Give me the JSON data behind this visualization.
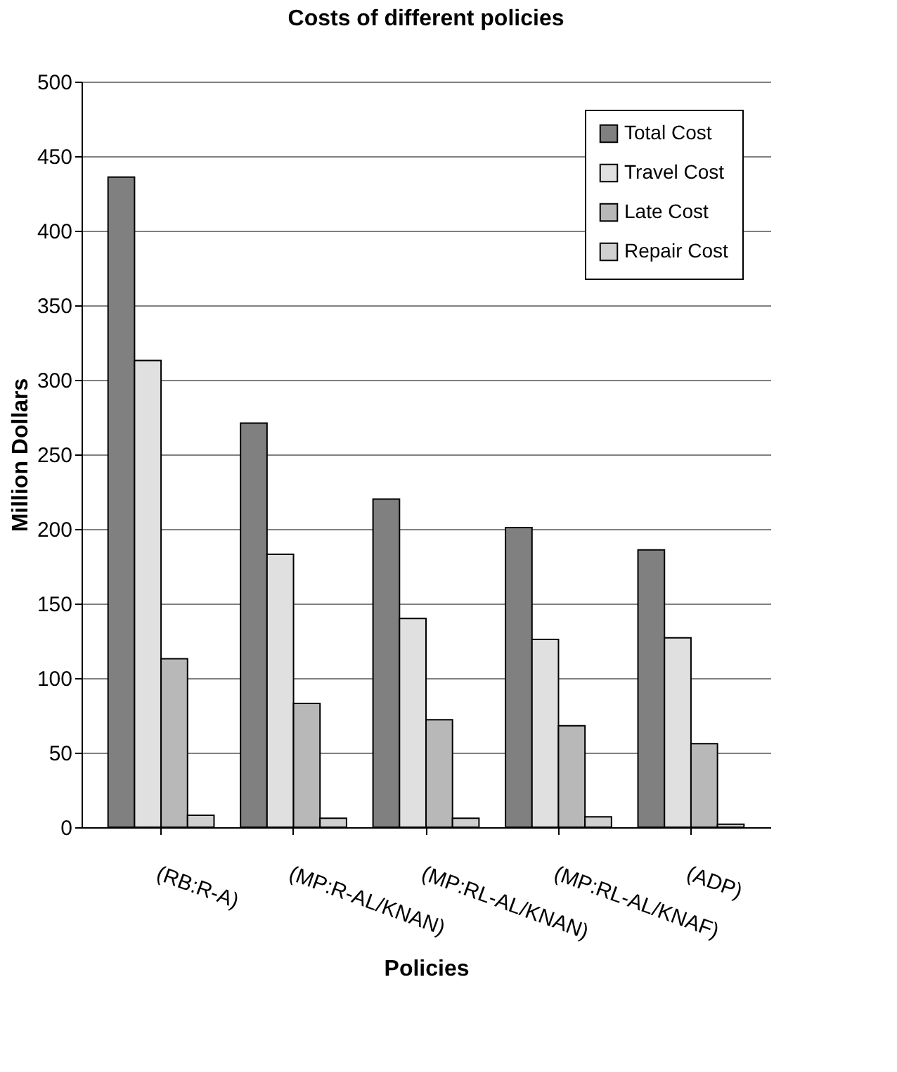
{
  "chart_data": {
    "type": "bar",
    "title": "Costs of different policies",
    "xlabel": "Policies",
    "ylabel": "Million Dollars",
    "categories": [
      "(RB:R-A)",
      "(MP:R-AL/KNAN)",
      "(MP:RL-AL/KNAN)",
      "(MP:RL-AL/KNAF)",
      "(ADP)"
    ],
    "series": [
      {
        "name": "Total Cost",
        "color": "#808080",
        "values": [
          436,
          271,
          220,
          201,
          186
        ]
      },
      {
        "name": "Travel Cost",
        "color": "#e0e0e0",
        "values": [
          313,
          183,
          140,
          126,
          127
        ]
      },
      {
        "name": "Late Cost",
        "color": "#b8b8b8",
        "values": [
          113,
          83,
          72,
          68,
          56
        ]
      },
      {
        "name": "Repair Cost",
        "color": "#d0d0d0",
        "values": [
          8,
          6,
          6,
          7,
          2
        ]
      }
    ],
    "ylim": [
      0,
      500
    ],
    "yticks": [
      0,
      50,
      100,
      150,
      200,
      250,
      300,
      350,
      400,
      450,
      500
    ],
    "grid": "y",
    "legend": "top right"
  }
}
